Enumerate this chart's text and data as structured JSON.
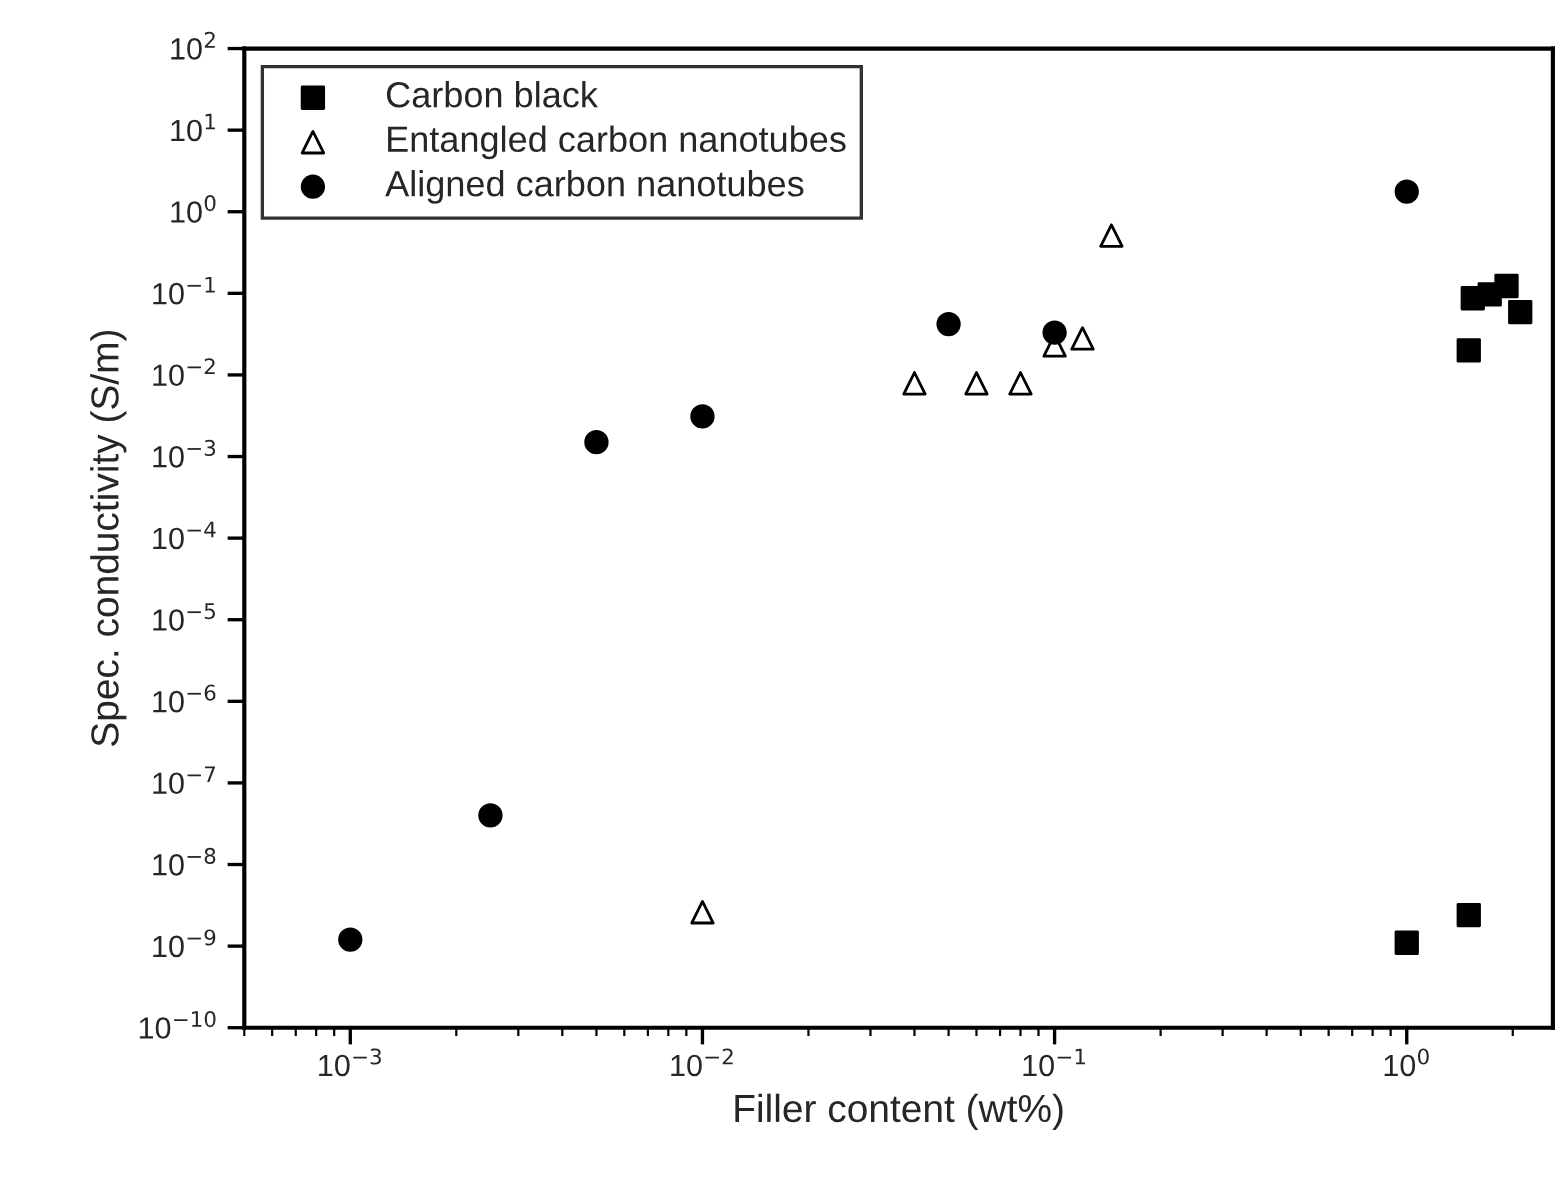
{
  "chart_data": {
    "type": "scatter",
    "xlabel": "Filler content (wt%)",
    "ylabel": "Spec. conductivity (S/m)",
    "log": "xy",
    "grid": false,
    "legend": "top left",
    "xlim": [
      0.0005,
      2.6
    ],
    "xticks": [
      {
        "value": 0.001,
        "label": "10$^{−3}$"
      },
      {
        "value": 0.01,
        "label": "10$^{−2}$"
      },
      {
        "value": 0.1,
        "label": "10$^{−1}$"
      },
      {
        "value": 1,
        "label": "10$^{0}$"
      }
    ],
    "ylim": [
      1e-10,
      100
    ],
    "yticks": [
      {
        "value": 1e-10,
        "label": "10$^{−10}$"
      },
      {
        "value": 1e-09,
        "label": "10$^{−9}$"
      },
      {
        "value": 1e-08,
        "label": "10$^{−8}$"
      },
      {
        "value": 1e-07,
        "label": "10$^{−7}$"
      },
      {
        "value": 1e-06,
        "label": "10$^{−6}$"
      },
      {
        "value": 1e-05,
        "label": "10$^{−5}$"
      },
      {
        "value": 0.0001,
        "label": "10$^{−4}$"
      },
      {
        "value": 0.001,
        "label": "10$^{−3}$"
      },
      {
        "value": 0.01,
        "label": "10$^{−2}$"
      },
      {
        "value": 0.1,
        "label": "10$^{−1}$"
      },
      {
        "value": 1,
        "label": "10$^{0}$"
      },
      {
        "value": 10,
        "label": "10$^{1}$"
      },
      {
        "value": 100,
        "label": "10$^{2}$"
      }
    ],
    "series": [
      {
        "name": "Carbon black",
        "color": "#000000",
        "marker": "square",
        "x": [
          1,
          1.5,
          1.5,
          1.54,
          1.72,
          1.92,
          2.1
        ],
        "values": [
          1.1e-09,
          2.4e-09,
          0.02,
          0.087,
          0.097,
          0.123,
          0.059
        ]
      },
      {
        "name": "Entangled carbon nanotubes",
        "color": "#000000",
        "marker": "triangle",
        "x": [
          0.01,
          0.04,
          0.06,
          0.08,
          0.1,
          0.12,
          0.145
        ],
        "values": [
          2.6e-09,
          0.0079,
          0.0079,
          0.0079,
          0.023,
          0.028,
          0.51
        ]
      },
      {
        "name": "Aligned carbon nanotubes",
        "color": "#000000",
        "marker": "circle",
        "x": [
          0.001,
          0.0025,
          0.005,
          0.01,
          0.05,
          0.1,
          1
        ],
        "values": [
          1.2e-09,
          4e-08,
          0.0015,
          0.0031,
          0.042,
          0.033,
          1.76
        ]
      }
    ]
  }
}
